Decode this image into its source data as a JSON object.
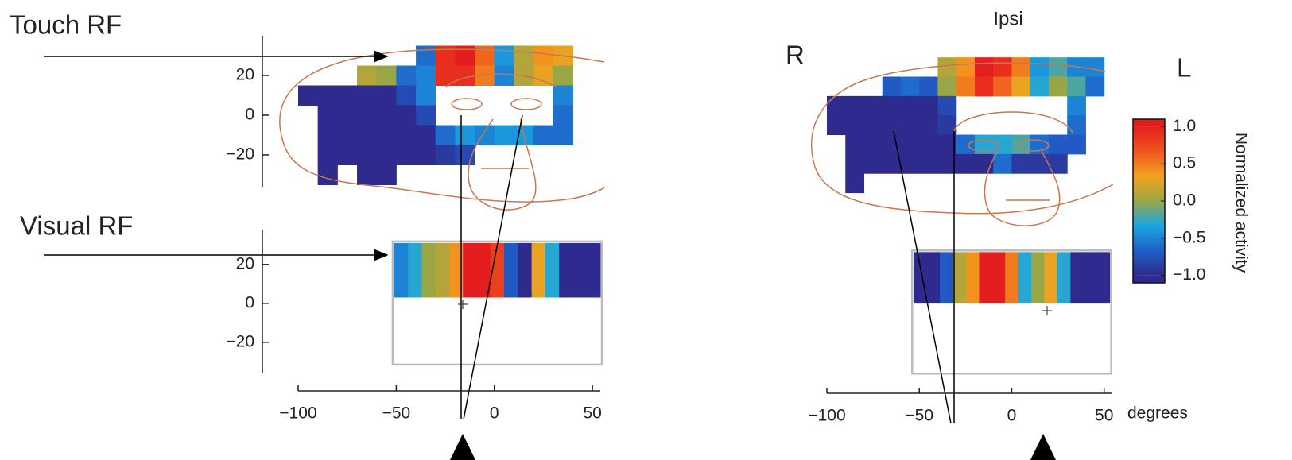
{
  "texts": {
    "touch_rf": "Touch RF",
    "visual_rf": "Visual RF",
    "ipsi": "Ipsi",
    "r": "R",
    "l": "L",
    "degrees": "degrees"
  },
  "chart_data": [
    {
      "type": "heatmap",
      "xlim": [
        -100,
        54
      ],
      "xticks": [
        {
          "value": -100,
          "label": "−100"
        },
        {
          "value": -50,
          "label": "−50"
        },
        0,
        50
      ],
      "touch": {
        "ylim": [
          -36,
          40
        ],
        "yticks": [
          20,
          0,
          {
            "value": -20,
            "label": "−20"
          }
        ],
        "x_edges": [
          -100,
          -90,
          -80,
          -70,
          -60,
          -50,
          -40,
          -30,
          -20,
          -10,
          0,
          10,
          20,
          30,
          40,
          50
        ],
        "y_edges": [
          35,
          25,
          15,
          5,
          -5,
          -15,
          -25,
          -35
        ],
        "values": [
          [
            null,
            null,
            null,
            null,
            null,
            null,
            -0.6,
            0.9,
            1.0,
            0.6,
            -0.4,
            0.1,
            0.4,
            0.3,
            null
          ],
          [
            null,
            null,
            null,
            0.1,
            0.0,
            -0.6,
            -0.5,
            0.9,
            0.9,
            0.5,
            -0.5,
            0.1,
            0.3,
            0.0,
            null
          ],
          [
            -1,
            -1,
            -1,
            -1,
            -1,
            -0.8,
            -0.5,
            null,
            null,
            null,
            null,
            null,
            null,
            -0.5,
            null
          ],
          [
            null,
            -1,
            -1,
            -1,
            -1,
            -1,
            -0.8,
            null,
            null,
            null,
            null,
            null,
            null,
            -0.6,
            null
          ],
          [
            null,
            -1,
            -1,
            -1,
            -1,
            -1,
            -1,
            -0.6,
            -0.4,
            -0.5,
            -0.4,
            -0.4,
            -0.6,
            -0.6,
            null
          ],
          [
            null,
            -1,
            -1,
            -1,
            -1,
            -1,
            -1,
            -0.9,
            -0.8,
            null,
            null,
            null,
            null,
            null,
            null
          ],
          [
            null,
            -1,
            null,
            -1,
            -1,
            null,
            null,
            null,
            null,
            null,
            null,
            null,
            null,
            null,
            null
          ]
        ]
      },
      "visual": {
        "ylim": [
          -36,
          37.5
        ],
        "yticks": [
          20,
          0,
          {
            "value": -20,
            "label": "−20"
          }
        ],
        "extent": [
          -51,
          54,
          3,
          31
        ],
        "values": [
          -0.5,
          -0.3,
          0.0,
          0.1,
          0.4,
          1.0,
          1.0,
          0.8,
          -0.7,
          -1,
          0.3,
          -0.3,
          -1,
          -1,
          -1
        ]
      }
    },
    {
      "type": "heatmap",
      "xlim": [
        -100,
        54
      ],
      "xticks": [
        {
          "value": -100,
          "label": "−100"
        },
        {
          "value": -50,
          "label": "−50"
        },
        0,
        50
      ],
      "touch": {
        "ylim": [
          -36,
          40
        ],
        "x_edges": [
          -100,
          -90,
          -80,
          -70,
          -60,
          -50,
          -40,
          -30,
          -20,
          -10,
          0,
          10,
          20,
          30,
          40,
          50
        ],
        "y_edges": [
          35,
          25,
          15,
          5,
          -5,
          -15,
          -25,
          -35
        ],
        "values": [
          [
            null,
            null,
            null,
            null,
            null,
            null,
            0.1,
            0.4,
            1.0,
            0.9,
            0.5,
            -0.4,
            -0.2,
            -0.5,
            -0.5
          ],
          [
            null,
            null,
            null,
            -0.7,
            -0.6,
            -0.7,
            0.0,
            0.5,
            0.9,
            0.6,
            0.3,
            -0.3,
            0.0,
            -0.2,
            -0.6
          ],
          [
            -1,
            -1,
            -1,
            -1,
            -1,
            -1,
            -0.8,
            null,
            null,
            null,
            null,
            null,
            null,
            -0.5,
            null
          ],
          [
            -1,
            -1,
            -1,
            -1,
            -1,
            -1,
            -0.9,
            null,
            null,
            null,
            null,
            null,
            null,
            -0.6,
            null
          ],
          [
            null,
            -1,
            -1,
            -1,
            -1,
            -1,
            -1,
            -0.6,
            -0.3,
            -0.3,
            -0.2,
            -0.6,
            -0.7,
            -0.7,
            null
          ],
          [
            null,
            -1,
            -1,
            -1,
            -1,
            -1,
            -1,
            -1,
            -1,
            -0.6,
            -0.9,
            -0.9,
            -0.9,
            null,
            null
          ],
          [
            null,
            -1,
            null,
            null,
            null,
            null,
            null,
            null,
            null,
            null,
            null,
            null,
            null,
            null,
            null
          ]
        ]
      },
      "visual": {
        "ylim": [
          -36,
          37.5
        ],
        "extent": [
          -53,
          53,
          2,
          30
        ],
        "values": [
          -1,
          -1,
          -0.7,
          0.1,
          0.4,
          1.0,
          1.0,
          0.5,
          -0.3,
          0.0,
          0.3,
          -0.3,
          -1,
          -1,
          -1
        ]
      }
    },
    {
      "type": "colorbar",
      "label": "Normalized activity",
      "clim": [
        -1,
        1
      ],
      "colormap": [
        "#2e2a8e",
        "#1f5fc8",
        "#1aa6e0",
        "#9aa646",
        "#f2a21e",
        "#f0561e",
        "#e41e1e"
      ],
      "ylim": [
        -1.1,
        1.1
      ],
      "yticks": [
        {
          "value": 1.0,
          "label": "1.0"
        },
        {
          "value": 0.5,
          "label": "0.5"
        },
        {
          "value": 0.0,
          "label": "0.0"
        },
        {
          "value": -0.5,
          "label": "−0.5"
        },
        {
          "value": -1.0,
          "label": "−1.0"
        }
      ]
    }
  ]
}
